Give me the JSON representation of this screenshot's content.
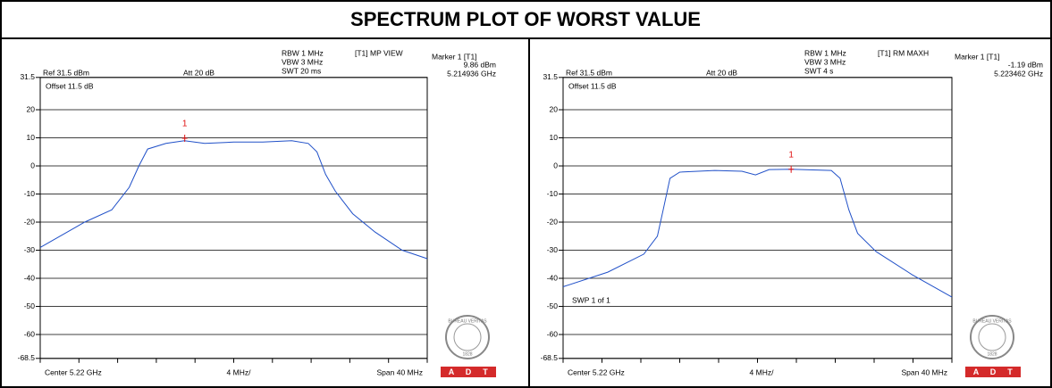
{
  "title": "SPECTRUM PLOT OF WORST VALUE",
  "logo": {
    "name": "BUREAU VERITAS",
    "year": "1828",
    "letters": [
      "A",
      "D",
      "T"
    ]
  },
  "chart_data": [
    {
      "type": "line",
      "header": [
        "RBW 1 MHz",
        "VBW 3 MHz",
        "SWT 20 ms"
      ],
      "trace_mode": "[T1] MP VIEW",
      "ref": "Ref 31.5 dBm",
      "att": "Att  20 dB",
      "offset": "Offset 11.5 dB",
      "center": "Center 5.22 GHz",
      "per_div": "4 MHz/",
      "span": "Span 40 MHz",
      "marker": {
        "label": "1",
        "title": "Marker 1 [T1]",
        "x": 5.214936,
        "y": 9.86,
        "x_label": "5.214936 GHz",
        "y_label": "9.86 dBm"
      },
      "xlim": [
        5.2,
        5.24
      ],
      "xticks": [
        5.2,
        5.204,
        5.208,
        5.212,
        5.216,
        5.22,
        5.224,
        5.228,
        5.232,
        5.236,
        5.24
      ],
      "ylim": [
        -68.5,
        31.5
      ],
      "yticks": [
        31.5,
        20,
        10,
        0,
        -10,
        -20,
        -30,
        -40,
        -50,
        -60,
        -68.5
      ],
      "grid": true,
      "x": [
        5.2,
        5.2046,
        5.2074,
        5.2092,
        5.2102,
        5.2111,
        5.213,
        5.2149,
        5.217,
        5.22,
        5.223,
        5.226,
        5.2277,
        5.2286,
        5.2295,
        5.2305,
        5.2323,
        5.2346,
        5.2374,
        5.24
      ],
      "series": [
        {
          "color": "#2050c8",
          "values": [
            -29,
            -20,
            -15.6,
            -7.6,
            0,
            6,
            8,
            9,
            8,
            8.5,
            8.5,
            9,
            8,
            5,
            -3,
            -9,
            -17,
            -23.5,
            -30,
            -33
          ]
        }
      ]
    },
    {
      "type": "line",
      "header": [
        "RBW 1 MHz",
        "VBW 3 MHz",
        "SWT 4 s"
      ],
      "trace_mode": "[T1] RM MAXH",
      "ref": "Ref 31.5 dBm",
      "att": "Att  20 dB",
      "offset": "Offset 11.5 dB",
      "sweep": "SWP 1 of 1",
      "center": "Center 5.22 GHz",
      "per_div": "4 MHz/",
      "span": "Span 40 MHz",
      "marker": {
        "label": "1",
        "title": "Marker 1 [T1]",
        "x": 5.223462,
        "y": -1.19,
        "x_label": "5.223462 GHz",
        "y_label": "-1.19 dBm"
      },
      "xlim": [
        5.2,
        5.24
      ],
      "xticks": [
        5.2,
        5.204,
        5.208,
        5.212,
        5.216,
        5.22,
        5.224,
        5.228,
        5.232,
        5.236,
        5.24
      ],
      "ylim": [
        -68.5,
        31.5
      ],
      "yticks": [
        31.5,
        20,
        10,
        0,
        -10,
        -20,
        -30,
        -40,
        -50,
        -60,
        -68.5
      ],
      "grid": true,
      "x": [
        5.2,
        5.2046,
        5.2083,
        5.2097,
        5.2103,
        5.211,
        5.212,
        5.2156,
        5.2184,
        5.2198,
        5.2212,
        5.2235,
        5.2276,
        5.2285,
        5.2294,
        5.2303,
        5.2322,
        5.2359,
        5.24
      ],
      "series": [
        {
          "color": "#2050c8",
          "values": [
            -43,
            -37.8,
            -31.4,
            -25,
            -15.6,
            -4.4,
            -2.2,
            -1.6,
            -1.9,
            -3.2,
            -1.3,
            -1.2,
            -1.6,
            -4.4,
            -15.6,
            -24,
            -30.5,
            -38.7,
            -46.7
          ]
        }
      ]
    }
  ]
}
